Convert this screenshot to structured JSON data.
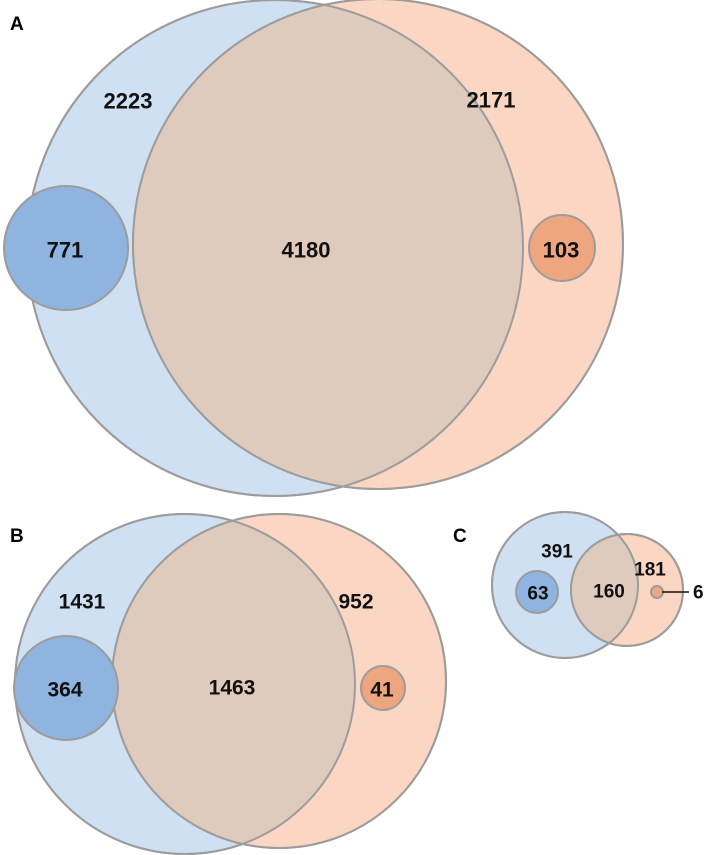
{
  "colors": {
    "set_blue": "#cfe0f3",
    "set_orange": "#fbd6c2",
    "overlap": "#dfcbbd",
    "subset_blue": "#8fb4df",
    "subset_orange": "#eda67f",
    "outline": "#9c9c9c"
  },
  "panels": [
    {
      "letter": "A",
      "left_only": "2223",
      "right_only": "2171",
      "intersection": "4180",
      "left_subset": "771",
      "right_subset": "103"
    },
    {
      "letter": "B",
      "left_only": "1431",
      "right_only": "952",
      "intersection": "1463",
      "left_subset": "364",
      "right_subset": "41"
    },
    {
      "letter": "C",
      "left_only": "391",
      "right_only": "181",
      "intersection": "160",
      "left_subset": "63",
      "right_subset": "6"
    }
  ]
}
